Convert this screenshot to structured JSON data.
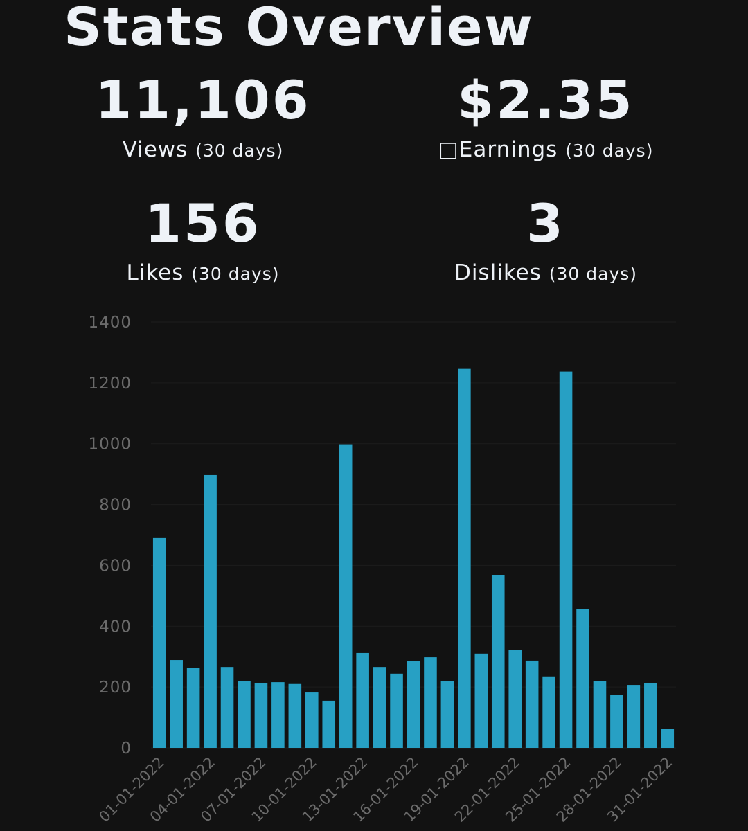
{
  "header": {
    "title": "Stats Overview"
  },
  "stats": [
    {
      "value": "11,106",
      "label": "Views",
      "period": "(30 days)"
    },
    {
      "value": "$2.35",
      "label": "□Earnings",
      "period": "(30 days)"
    },
    {
      "value": "156",
      "label": "Likes",
      "period": "(30 days)"
    },
    {
      "value": "3",
      "label": "Dislikes",
      "period": "(30 days)"
    }
  ],
  "chart_data": {
    "type": "bar",
    "color": "#27a0c4",
    "categories": [
      "01-01-2022",
      null,
      null,
      "04-01-2022",
      null,
      null,
      "07-01-2022",
      null,
      null,
      "10-01-2022",
      null,
      null,
      "13-01-2022",
      null,
      null,
      "16-01-2022",
      null,
      null,
      "19-01-2022",
      null,
      null,
      "22-01-2022",
      null,
      null,
      "25-01-2022",
      null,
      null,
      "28-01-2022",
      null,
      null,
      "31-01-2022"
    ],
    "values": [
      690,
      289,
      262,
      897,
      266,
      219,
      214,
      216,
      210,
      182,
      155,
      998,
      312,
      266,
      244,
      285,
      298,
      219,
      1246,
      310,
      567,
      323,
      287,
      235,
      1237,
      456,
      219,
      175,
      207,
      214,
      62
    ],
    "ylim": [
      0,
      1400
    ],
    "yticks": [
      0,
      200,
      400,
      600,
      800,
      1000,
      1200,
      1400
    ],
    "grid": true
  }
}
